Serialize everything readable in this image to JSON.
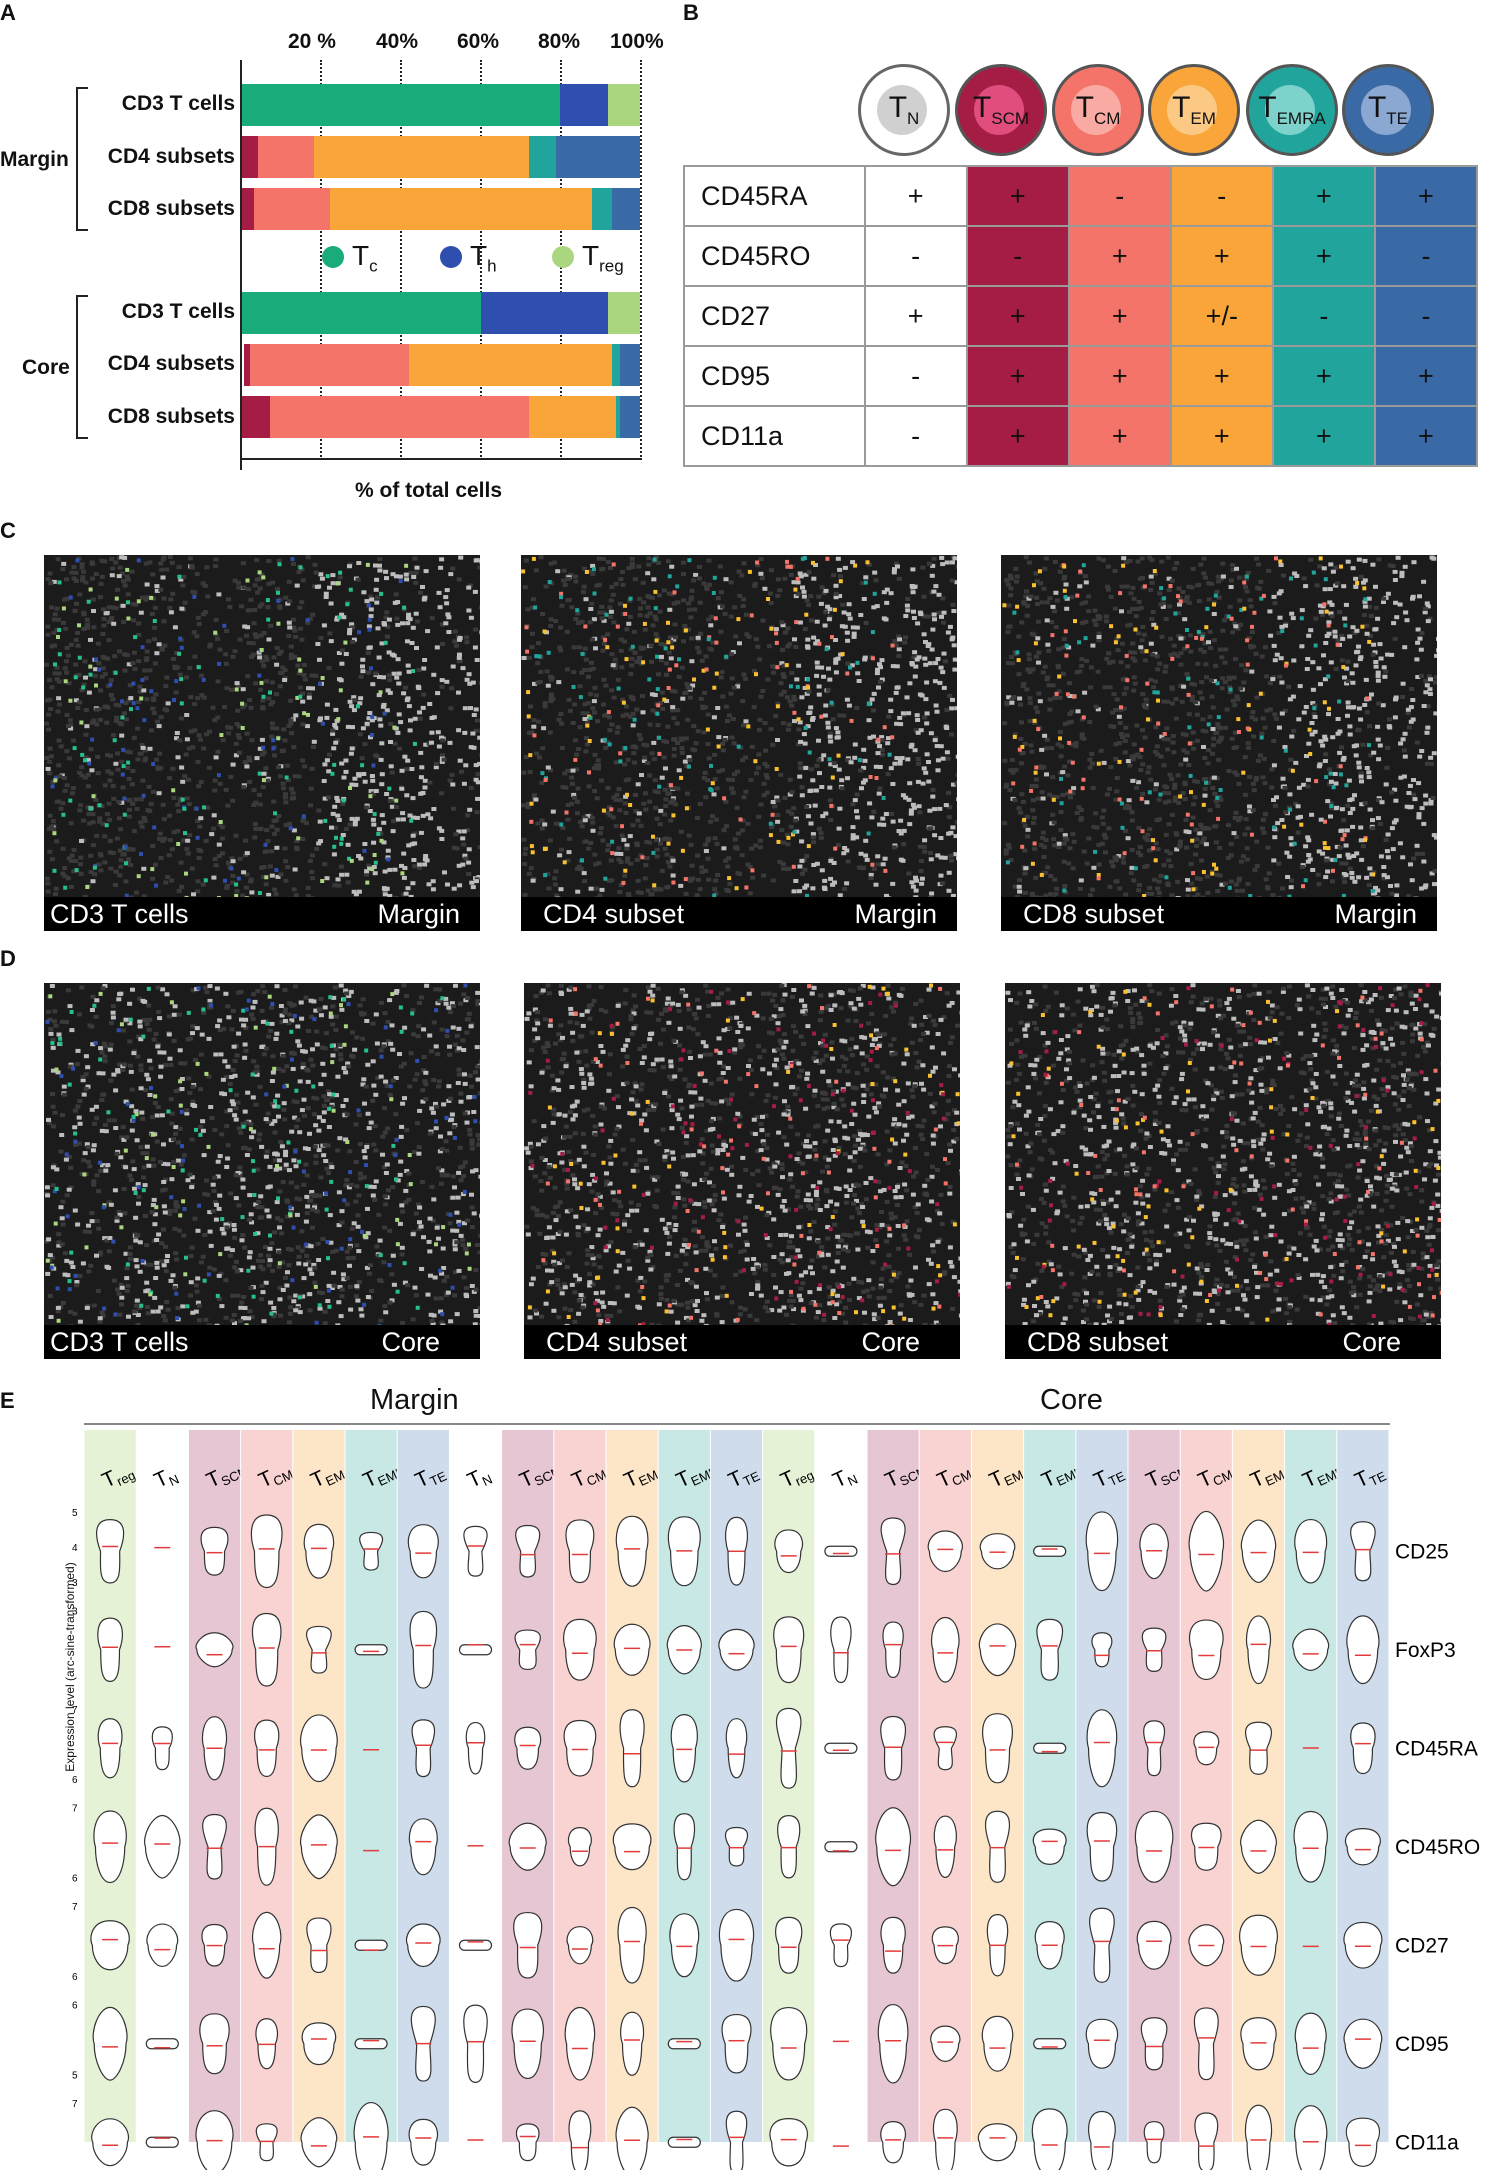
{
  "panels": {
    "a": "A",
    "b": "B",
    "c": "C",
    "d": "D",
    "e": "E"
  },
  "panel_a": {
    "ticks": [
      "20 %",
      "40%",
      "60%",
      "80%",
      "100%"
    ],
    "group_margin": "Margin",
    "group_core": "Core",
    "row_labels": [
      "CD3 T cells",
      "CD4 subsets",
      "CD8 subsets",
      "CD3 T cells",
      "CD4 subsets",
      "CD8 subsets"
    ],
    "legend": {
      "tc": "T",
      "tc_sub": "c",
      "th": "T",
      "th_sub": "h",
      "treg": "T",
      "treg_sub": "reg"
    },
    "xlabel": "% of total cells"
  },
  "chart_data": {
    "type": "bar",
    "orientation": "horizontal-stacked",
    "xlabel": "% of total cells",
    "xlim": [
      0,
      100
    ],
    "categories": [
      "Margin CD3 T cells",
      "Margin CD4 subsets",
      "Margin CD8 subsets",
      "Core CD3 T cells",
      "Core CD4 subsets",
      "Core CD8 subsets"
    ],
    "cd3_series": [
      {
        "name": "Tc",
        "color": "#1aab7a",
        "values": [
          80,
          null,
          null,
          60,
          null,
          null
        ]
      },
      {
        "name": "Th",
        "color": "#2f4fae",
        "values": [
          12,
          null,
          null,
          32,
          null,
          null
        ]
      },
      {
        "name": "Treg",
        "color": "#a9d67e",
        "values": [
          8,
          null,
          null,
          8,
          null,
          null
        ]
      }
    ],
    "subset_series": [
      {
        "name": "TN",
        "color": "#ffffff",
        "values": [
          null,
          0,
          0,
          null,
          0.5,
          0
        ]
      },
      {
        "name": "TSCM",
        "color": "#a51d45",
        "values": [
          null,
          4,
          3,
          null,
          1.5,
          7
        ]
      },
      {
        "name": "TCM",
        "color": "#f4746a",
        "values": [
          null,
          14,
          19,
          null,
          40,
          65
        ]
      },
      {
        "name": "TEM",
        "color": "#f9a53a",
        "values": [
          null,
          54,
          66,
          null,
          51,
          22
        ]
      },
      {
        "name": "TEMRA",
        "color": "#21a49c",
        "values": [
          null,
          7,
          5,
          null,
          2,
          1
        ]
      },
      {
        "name": "TTE",
        "color": "#3a6aa5",
        "values": [
          null,
          21,
          7,
          null,
          5,
          5
        ]
      }
    ]
  },
  "panel_b": {
    "headers": [
      {
        "t": "T",
        "s": "N",
        "ring": "#ffffff",
        "inner": "#d0d0d0"
      },
      {
        "t": "T",
        "s": "SCM",
        "ring": "#a51d45",
        "inner": "#e14d7d"
      },
      {
        "t": "T",
        "s": "CM",
        "ring": "#f4746a",
        "inner": "#f9aba3"
      },
      {
        "t": "T",
        "s": "EM",
        "ring": "#f9a53a",
        "inner": "#fcc985"
      },
      {
        "t": "T",
        "s": "EMRA",
        "ring": "#21a49c",
        "inner": "#7dd3cc"
      },
      {
        "t": "T",
        "s": "TE",
        "ring": "#3a6aa5",
        "inner": "#8aa8d2"
      }
    ],
    "col_colors": [
      "#ffffff",
      "#a51d45",
      "#f4746a",
      "#f9a53a",
      "#21a49c",
      "#3a6aa5"
    ],
    "rows": [
      {
        "marker": "CD45RA",
        "vals": [
          "+",
          "+",
          "-",
          "-",
          "+",
          "+"
        ]
      },
      {
        "marker": "CD45RO",
        "vals": [
          "-",
          "-",
          "+",
          "+",
          "+",
          "-"
        ]
      },
      {
        "marker": "CD27",
        "vals": [
          "+",
          "+",
          "+",
          "+/-",
          "-",
          "-"
        ]
      },
      {
        "marker": "CD95",
        "vals": [
          "-",
          "+",
          "+",
          "+",
          "+",
          "+"
        ]
      },
      {
        "marker": "CD11a",
        "vals": [
          "-",
          "+",
          "+",
          "+",
          "+",
          "+"
        ]
      }
    ]
  },
  "panel_c": [
    {
      "left": "CD3 T cells",
      "right": "Margin"
    },
    {
      "left": "CD4 subset",
      "right": "Margin"
    },
    {
      "left": "CD8 subset",
      "right": "Margin"
    }
  ],
  "panel_d": [
    {
      "left": "CD3 T cells",
      "right": "Core"
    },
    {
      "left": "CD4 subset",
      "right": "Core"
    },
    {
      "left": "CD8 subset",
      "right": "Core"
    }
  ],
  "panel_e": {
    "group_margin": "Margin",
    "group_core": "Core",
    "ylabel": "Expression level (arc-sine-transformed)",
    "row_labels": [
      "CD25",
      "FoxP3",
      "CD45RA",
      "CD45RO",
      "CD27",
      "CD95",
      "CD11a"
    ],
    "columns": [
      {
        "t": "T",
        "s": "reg",
        "c": "#e6f2d6"
      },
      {
        "t": "T",
        "s": "N",
        "c": "#ffffff"
      },
      {
        "t": "T",
        "s": "SCM",
        "c": "#e7c6d3"
      },
      {
        "t": "T",
        "s": "CM",
        "c": "#f8d3d1"
      },
      {
        "t": "T",
        "s": "EM",
        "c": "#fde6c8"
      },
      {
        "t": "T",
        "s": "EMRA",
        "c": "#c7e8e5"
      },
      {
        "t": "T",
        "s": "TE",
        "c": "#cfdcec"
      },
      {
        "t": "T",
        "s": "N",
        "c": "#ffffff"
      },
      {
        "t": "T",
        "s": "SCM",
        "c": "#e7c6d3"
      },
      {
        "t": "T",
        "s": "CM",
        "c": "#f8d3d1"
      },
      {
        "t": "T",
        "s": "EM",
        "c": "#fde6c8"
      },
      {
        "t": "T",
        "s": "EMRA",
        "c": "#c7e8e5"
      },
      {
        "t": "T",
        "s": "TE",
        "c": "#cfdcec"
      },
      {
        "t": "T",
        "s": "reg",
        "c": "#e6f2d6"
      },
      {
        "t": "T",
        "s": "N",
        "c": "#ffffff"
      },
      {
        "t": "T",
        "s": "SCM",
        "c": "#e7c6d3"
      },
      {
        "t": "T",
        "s": "CM",
        "c": "#f8d3d1"
      },
      {
        "t": "T",
        "s": "EM",
        "c": "#fde6c8"
      },
      {
        "t": "T",
        "s": "EMRA",
        "c": "#c7e8e5"
      },
      {
        "t": "T",
        "s": "TE",
        "c": "#cfdcec"
      },
      {
        "t": "T",
        "s": "SCM",
        "c": "#e7c6d3"
      },
      {
        "t": "T",
        "s": "CM",
        "c": "#f8d3d1"
      },
      {
        "t": "T",
        "s": "EM",
        "c": "#fde6c8"
      },
      {
        "t": "T",
        "s": "EMRA",
        "c": "#c7e8e5"
      },
      {
        "t": "T",
        "s": "TE",
        "c": "#cfdcec"
      }
    ],
    "y_ticks": [
      [
        "5",
        "4",
        "3"
      ],
      [
        "3"
      ],
      [
        "7",
        "6"
      ],
      [
        "7",
        "6"
      ],
      [
        "7",
        "6"
      ],
      [
        "6",
        "5"
      ],
      [
        "7",
        "6"
      ]
    ]
  }
}
